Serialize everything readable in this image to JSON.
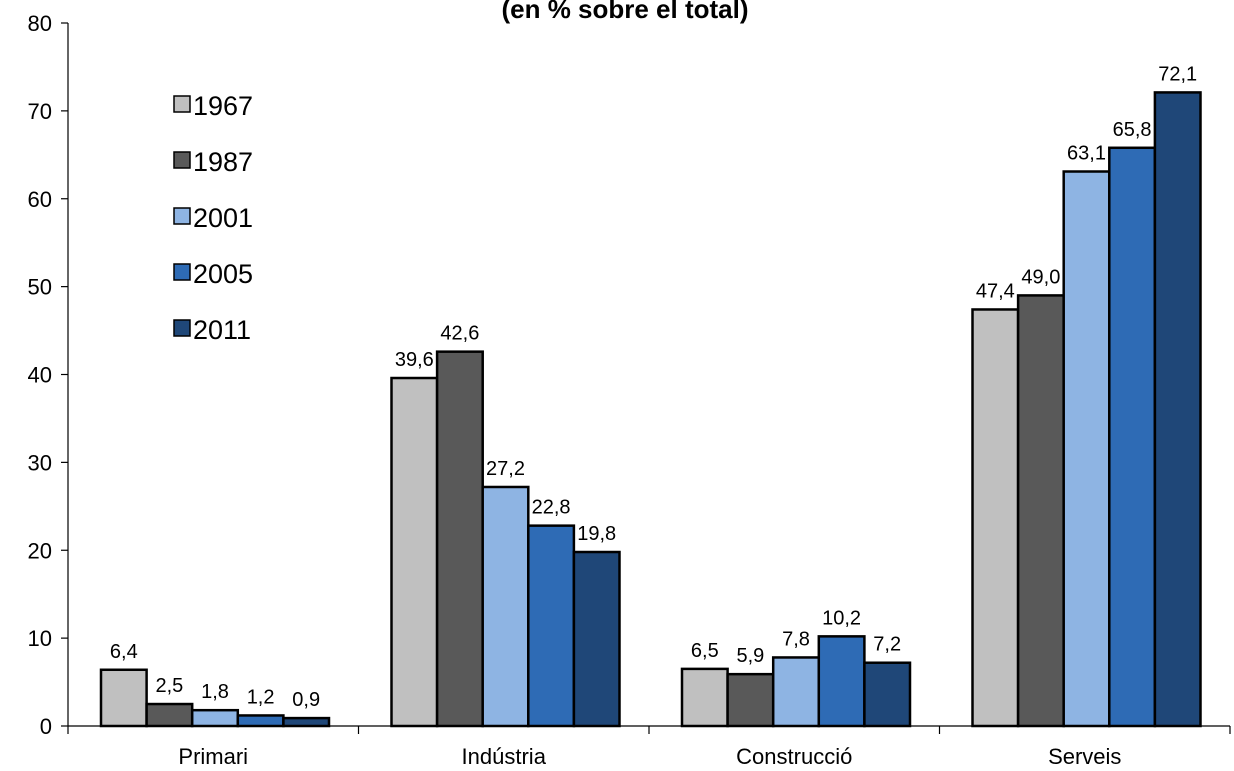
{
  "chart_data": {
    "type": "bar",
    "title": "(en % sobre el total)",
    "xlabel": "",
    "ylabel": "",
    "ylim": [
      0,
      80
    ],
    "yticks": [
      0,
      10,
      20,
      30,
      40,
      50,
      60,
      70,
      80
    ],
    "grid": false,
    "legend_position": "top-left",
    "categories": [
      "Primari",
      "Indústria",
      "Construcció",
      "Serveis"
    ],
    "series": [
      {
        "name": "1967",
        "color": "#c0c0c0",
        "values": [
          6.4,
          39.6,
          6.5,
          47.4
        ],
        "labels": [
          "6,4",
          "39,6",
          "6,5",
          "47,4"
        ]
      },
      {
        "name": "1987",
        "color": "#595959",
        "values": [
          2.5,
          42.6,
          5.9,
          49.0
        ],
        "labels": [
          "2,5",
          "42,6",
          "5,9",
          "49,0"
        ]
      },
      {
        "name": "2001",
        "color": "#8eb4e3",
        "values": [
          1.8,
          27.2,
          7.8,
          63.1
        ],
        "labels": [
          "1,8",
          "27,2",
          "7,8",
          "63,1"
        ]
      },
      {
        "name": "2005",
        "color": "#2e6bb5",
        "values": [
          1.2,
          22.8,
          10.2,
          65.8
        ],
        "labels": [
          "1,2",
          "22,8",
          "10,2",
          "65,8"
        ]
      },
      {
        "name": "2011",
        "color": "#1f4778",
        "values": [
          0.9,
          19.8,
          7.2,
          72.1
        ],
        "labels": [
          "0,9",
          "19,8",
          "7,2",
          "72,1"
        ]
      }
    ]
  }
}
